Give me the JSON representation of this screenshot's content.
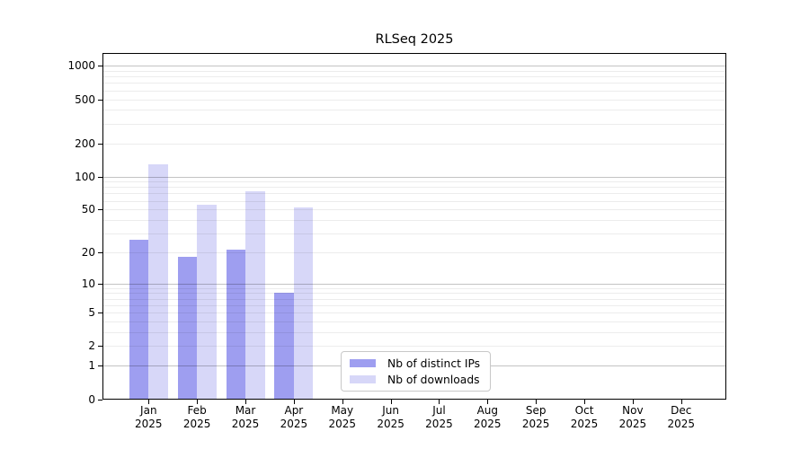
{
  "title": "RLSeq 2025",
  "chart_data": {
    "type": "bar",
    "title": "RLSeq 2025",
    "categories": [
      "Jan",
      "Feb",
      "Mar",
      "Apr",
      "May",
      "Jun",
      "Jul",
      "Aug",
      "Sep",
      "Oct",
      "Nov",
      "Dec"
    ],
    "year": "2025",
    "series": [
      {
        "name": "Nb of distinct IPs",
        "color": "#9e9ef0",
        "values": [
          26,
          18,
          21,
          8,
          null,
          null,
          null,
          null,
          null,
          null,
          null,
          null
        ]
      },
      {
        "name": "Nb of downloads",
        "color": "#d7d7f8",
        "values": [
          129,
          55,
          73,
          52,
          null,
          null,
          null,
          null,
          null,
          null,
          null,
          null
        ]
      }
    ],
    "xlabel": "",
    "ylabel": "",
    "yscale": "log1p",
    "yticks": [
      0,
      1,
      2,
      5,
      10,
      20,
      50,
      100,
      200,
      500,
      1000
    ],
    "major_gridlines": [
      1,
      10,
      100,
      1000
    ],
    "minor_gridlines": [
      2,
      3,
      4,
      5,
      6,
      7,
      8,
      9,
      20,
      30,
      40,
      50,
      60,
      70,
      80,
      90,
      200,
      300,
      400,
      500,
      600,
      700,
      800,
      900
    ],
    "ylim": [
      0,
      1300
    ],
    "grid": "horizontal",
    "legend_position": "lower center"
  }
}
